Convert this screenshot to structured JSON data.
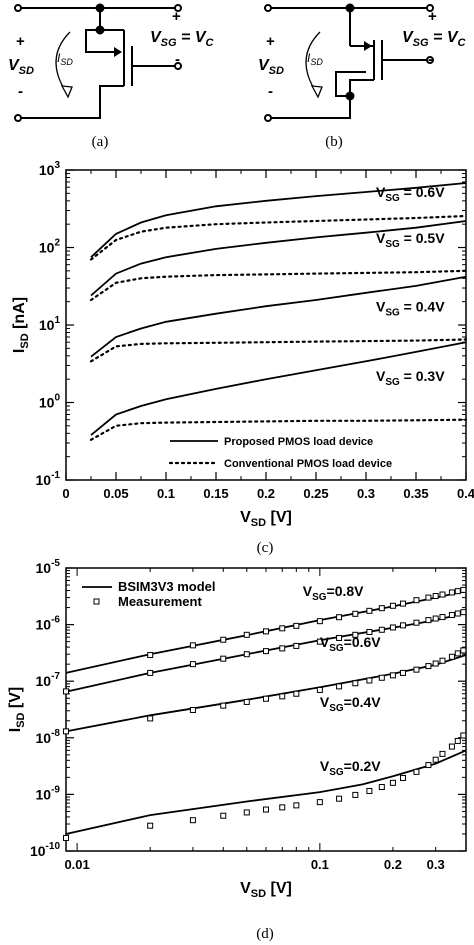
{
  "circuits": [
    {
      "caption": "(a)",
      "vsd_label": "V",
      "vsd_sub": "SD",
      "vsg_label": "V",
      "vsg_sub": "SG",
      "vsg_rhs": " = V",
      "vsg_rhs_sub": "C",
      "isd_label": "I",
      "isd_sub": "SD",
      "plus": "+",
      "minus": "-"
    },
    {
      "caption": "(b)",
      "vsd_label": "V",
      "vsd_sub": "SD",
      "vsg_label": "V",
      "vsg_sub": "SG",
      "vsg_rhs": " = V",
      "vsg_rhs_sub": "C",
      "isd_label": "I",
      "isd_sub": "SD",
      "plus": "+",
      "minus": "-"
    }
  ],
  "chart_data": [
    {
      "type": "line",
      "caption": "(c)",
      "xlabel": "V",
      "xlabel_sub": "SD",
      "xlabel_unit": "[V]",
      "ylabel": "I",
      "ylabel_sub": "SD",
      "ylabel_unit": "[nA]",
      "xlim": [
        0,
        0.4
      ],
      "ylim": [
        0.1,
        1000
      ],
      "yscale": "log",
      "xticks": [
        0,
        0.05,
        0.1,
        0.15,
        0.2,
        0.25,
        0.3,
        0.35,
        0.4
      ],
      "xtick_labels": [
        "0",
        "0.05",
        "0.1",
        "0.15",
        "0.2",
        "0.25",
        "0.3",
        "0.35",
        "0.4"
      ],
      "yticks": [
        0.1,
        1,
        10,
        100,
        1000
      ],
      "ytick_base": "10",
      "ytick_exps": [
        "-1",
        "0",
        "1",
        "2",
        "3"
      ],
      "legend_position": "bottom-right",
      "legend": [
        {
          "label": "Proposed PMOS load device",
          "style": "solid"
        },
        {
          "label": "Conventional PMOS load device",
          "style": "dotted"
        }
      ],
      "annotations": [
        {
          "text": "V",
          "sub": "SG",
          "rhs": " = 0.6V",
          "x": 0.31,
          "y": 450
        },
        {
          "text": "V",
          "sub": "SG",
          "rhs": " = 0.5V",
          "x": 0.31,
          "y": 115
        },
        {
          "text": "V",
          "sub": "SG",
          "rhs": " = 0.4V",
          "x": 0.31,
          "y": 15
        },
        {
          "text": "V",
          "sub": "SG",
          "rhs": " = 0.3V",
          "x": 0.31,
          "y": 1.9
        }
      ],
      "series": [
        {
          "name": "Proposed, VSG = 0.6V",
          "style": "solid",
          "x": [
            0.025,
            0.05,
            0.075,
            0.1,
            0.15,
            0.2,
            0.25,
            0.3,
            0.35,
            0.4
          ],
          "values": [
            75,
            150,
            210,
            260,
            340,
            400,
            460,
            520,
            590,
            680
          ]
        },
        {
          "name": "Conventional, VSG = 0.6V",
          "style": "dotted",
          "x": [
            0.025,
            0.05,
            0.075,
            0.1,
            0.15,
            0.2,
            0.25,
            0.3,
            0.35,
            0.4
          ],
          "values": [
            70,
            125,
            160,
            180,
            200,
            210,
            220,
            230,
            240,
            255
          ]
        },
        {
          "name": "Proposed, VSG = 0.5V",
          "style": "solid",
          "x": [
            0.025,
            0.05,
            0.075,
            0.1,
            0.15,
            0.2,
            0.25,
            0.3,
            0.35,
            0.4
          ],
          "values": [
            24,
            46,
            62,
            75,
            96,
            115,
            135,
            155,
            180,
            220
          ]
        },
        {
          "name": "Conventional, VSG = 0.5V",
          "style": "dotted",
          "x": [
            0.025,
            0.05,
            0.075,
            0.1,
            0.15,
            0.2,
            0.25,
            0.3,
            0.35,
            0.4
          ],
          "values": [
            21,
            35,
            40,
            42,
            44,
            45,
            46,
            47,
            48,
            50
          ]
        },
        {
          "name": "Proposed, VSG = 0.4V",
          "style": "solid",
          "x": [
            0.025,
            0.05,
            0.075,
            0.1,
            0.15,
            0.2,
            0.25,
            0.3,
            0.35,
            0.4
          ],
          "values": [
            3.9,
            7,
            9,
            11,
            14,
            17.5,
            21,
            26,
            32,
            42
          ]
        },
        {
          "name": "Conventional, VSG = 0.4V",
          "style": "dotted",
          "x": [
            0.025,
            0.05,
            0.075,
            0.1,
            0.15,
            0.2,
            0.25,
            0.3,
            0.35,
            0.4
          ],
          "values": [
            3.4,
            5.3,
            5.7,
            5.8,
            5.9,
            6.0,
            6.1,
            6.2,
            6.3,
            6.5
          ]
        },
        {
          "name": "Proposed, VSG = 0.3V",
          "style": "solid",
          "x": [
            0.025,
            0.05,
            0.075,
            0.1,
            0.15,
            0.2,
            0.25,
            0.3,
            0.35,
            0.4
          ],
          "values": [
            0.38,
            0.7,
            0.9,
            1.1,
            1.5,
            2.0,
            2.6,
            3.4,
            4.5,
            6.0
          ]
        },
        {
          "name": "Conventional, VSG = 0.3V",
          "style": "dotted",
          "x": [
            0.025,
            0.05,
            0.075,
            0.1,
            0.15,
            0.2,
            0.25,
            0.3,
            0.35,
            0.4
          ],
          "values": [
            0.33,
            0.5,
            0.54,
            0.55,
            0.56,
            0.57,
            0.58,
            0.58,
            0.59,
            0.6
          ]
        }
      ]
    },
    {
      "type": "scatter",
      "caption": "(d)",
      "xlabel": "V",
      "xlabel_sub": "SD",
      "xlabel_unit": "[V]",
      "ylabel": "I",
      "ylabel_sub": "SD",
      "ylabel_unit": "[V]",
      "xlim": [
        0.009,
        0.4
      ],
      "ylim": [
        1e-10,
        1e-05
      ],
      "xscale": "log",
      "yscale": "log",
      "xticks": [
        0.01,
        0.1,
        0.2,
        0.3
      ],
      "xtick_labels": [
        "0.01",
        "0.1",
        "0.2",
        "0.3"
      ],
      "yticks": [
        1e-10,
        1e-09,
        1e-08,
        1e-07,
        1e-06,
        1e-05
      ],
      "ytick_base": "10",
      "ytick_exps": [
        "-10",
        "-9",
        "-8",
        "-7",
        "-6",
        "-5"
      ],
      "legend_position": "top-left",
      "legend": [
        {
          "label": "BSIM3V3 model",
          "style": "solid"
        },
        {
          "label": "Measurement",
          "style": "square"
        }
      ],
      "annotations": [
        {
          "text": "V",
          "sub": "SG",
          "rhs": "=0.8V",
          "x": 0.085,
          "y": 3.2e-06
        },
        {
          "text": "V",
          "sub": "SG",
          "rhs": "=0.6V",
          "x": 0.1,
          "y": 4e-07
        },
        {
          "text": "V",
          "sub": "SG",
          "rhs": "=0.4V",
          "x": 0.1,
          "y": 3.5e-08
        },
        {
          "text": "V",
          "sub": "SG",
          "rhs": "=0.2V",
          "x": 0.1,
          "y": 2.6e-09
        }
      ],
      "series": [
        {
          "name": "Model, VSG=0.8V",
          "style": "solid",
          "x": [
            0.009,
            0.02,
            0.05,
            0.1,
            0.2,
            0.3,
            0.4
          ],
          "values": [
            1.4e-07,
            3e-07,
            6.5e-07,
            1.2e-06,
            2.1e-06,
            3e-06,
            3.9e-06
          ]
        },
        {
          "name": "Measurement, VSG=0.8V",
          "style": "square",
          "x": [
            0.02,
            0.03,
            0.04,
            0.05,
            0.06,
            0.07,
            0.08,
            0.1,
            0.12,
            0.14,
            0.16,
            0.18,
            0.2,
            0.22,
            0.25,
            0.28,
            0.3,
            0.32,
            0.35,
            0.37,
            0.39
          ],
          "values": [
            2.9e-07,
            4.3e-07,
            5.4e-07,
            6.6e-07,
            7.6e-07,
            8.6e-07,
            9.5e-07,
            1.15e-06,
            1.35e-06,
            1.55e-06,
            1.75e-06,
            1.95e-06,
            2.15e-06,
            2.35e-06,
            2.7e-06,
            3e-06,
            3.2e-06,
            3.4e-06,
            3.7e-06,
            3.9e-06,
            4.1e-06
          ]
        },
        {
          "name": "Model, VSG=0.6V",
          "style": "solid",
          "x": [
            0.009,
            0.02,
            0.05,
            0.1,
            0.2,
            0.3,
            0.4
          ],
          "values": [
            6.5e-08,
            1.4e-07,
            3e-07,
            5.3e-07,
            8.8e-07,
            1.2e-06,
            1.6e-06
          ]
        },
        {
          "name": "Measurement, VSG=0.6V",
          "style": "square",
          "x": [
            0.009,
            0.02,
            0.03,
            0.04,
            0.05,
            0.06,
            0.07,
            0.08,
            0.1,
            0.12,
            0.14,
            0.16,
            0.18,
            0.2,
            0.22,
            0.25,
            0.28,
            0.3,
            0.32,
            0.35,
            0.37,
            0.39
          ],
          "values": [
            6.6e-08,
            1.4e-07,
            2e-07,
            2.5e-07,
            3e-07,
            3.4e-07,
            3.8e-07,
            4.2e-07,
            5e-07,
            5.8e-07,
            6.6e-07,
            7.4e-07,
            8.1e-07,
            8.9e-07,
            9.7e-07,
            1.08e-06,
            1.2e-06,
            1.28e-06,
            1.36e-06,
            1.48e-06,
            1.57e-06,
            1.66e-06
          ]
        },
        {
          "name": "Model, VSG=0.4V",
          "style": "solid",
          "x": [
            0.009,
            0.02,
            0.05,
            0.1,
            0.2,
            0.3,
            0.4
          ],
          "values": [
            1.3e-08,
            2.5e-08,
            4.7e-08,
            7.8e-08,
            1.35e-07,
            1.95e-07,
            2.9e-07
          ]
        },
        {
          "name": "Measurement, VSG=0.4V",
          "style": "square",
          "x": [
            0.009,
            0.02,
            0.03,
            0.04,
            0.05,
            0.06,
            0.07,
            0.08,
            0.1,
            0.12,
            0.14,
            0.16,
            0.18,
            0.2,
            0.22,
            0.25,
            0.28,
            0.3,
            0.32,
            0.35,
            0.37,
            0.39
          ],
          "values": [
            1.3e-08,
            2.2e-08,
            3.1e-08,
            3.7e-08,
            4.3e-08,
            4.9e-08,
            5.4e-08,
            6e-08,
            7e-08,
            8.1e-08,
            9.2e-08,
            1.03e-07,
            1.15e-07,
            1.27e-07,
            1.4e-07,
            1.6e-07,
            1.85e-07,
            2.05e-07,
            2.3e-07,
            2.7e-07,
            3.1e-07,
            3.5e-07
          ]
        },
        {
          "name": "Model, VSG=0.2V",
          "style": "solid",
          "x": [
            0.009,
            0.02,
            0.05,
            0.1,
            0.15,
            0.2,
            0.3,
            0.4
          ],
          "values": [
            2e-10,
            4.3e-10,
            7.5e-10,
            1.1e-09,
            1.5e-09,
            2.1e-09,
            3.5e-09,
            6e-09
          ]
        },
        {
          "name": "Measurement, VSG=0.2V",
          "style": "square",
          "x": [
            0.009,
            0.02,
            0.03,
            0.04,
            0.05,
            0.06,
            0.07,
            0.08,
            0.1,
            0.12,
            0.14,
            0.16,
            0.18,
            0.2,
            0.22,
            0.25,
            0.28,
            0.3,
            0.32,
            0.35,
            0.37,
            0.39
          ],
          "values": [
            1.7e-10,
            2.8e-10,
            3.5e-10,
            4.2e-10,
            4.8e-10,
            5.4e-10,
            5.9e-10,
            6.4e-10,
            7.3e-10,
            8.4e-10,
            9.8e-10,
            1.15e-09,
            1.35e-09,
            1.6e-09,
            1.95e-09,
            2.5e-09,
            3.3e-09,
            4.1e-09,
            5.2e-09,
            7e-09,
            8.8e-09,
            1.1e-08
          ]
        }
      ]
    }
  ]
}
